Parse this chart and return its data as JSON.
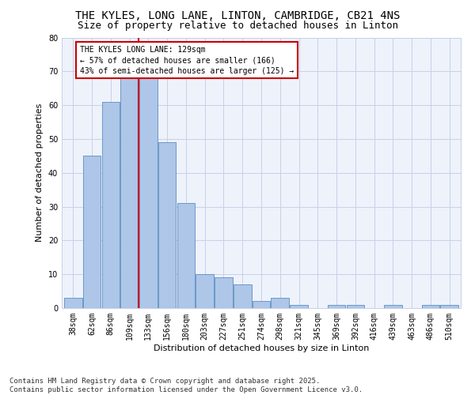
{
  "title": "THE KYLES, LONG LANE, LINTON, CAMBRIDGE, CB21 4NS",
  "subtitle": "Size of property relative to detached houses in Linton",
  "xlabel": "Distribution of detached houses by size in Linton",
  "ylabel": "Number of detached properties",
  "categories": [
    "38sqm",
    "62sqm",
    "86sqm",
    "109sqm",
    "133sqm",
    "156sqm",
    "180sqm",
    "203sqm",
    "227sqm",
    "251sqm",
    "274sqm",
    "298sqm",
    "321sqm",
    "345sqm",
    "369sqm",
    "392sqm",
    "416sqm",
    "439sqm",
    "463sqm",
    "486sqm",
    "510sqm"
  ],
  "values": [
    3,
    45,
    61,
    68,
    68,
    49,
    31,
    10,
    9,
    7,
    2,
    3,
    1,
    0,
    1,
    1,
    0,
    1,
    0,
    1,
    1
  ],
  "bar_color": "#aec6e8",
  "bar_edge_color": "#5a8fc2",
  "highlight_line_color": "#cc0000",
  "annotation_text": "THE KYLES LONG LANE: 129sqm\n← 57% of detached houses are smaller (166)\n43% of semi-detached houses are larger (125) →",
  "annotation_box_color": "#cc0000",
  "ylim": [
    0,
    80
  ],
  "yticks": [
    0,
    10,
    20,
    30,
    40,
    50,
    60,
    70,
    80
  ],
  "footer_text": "Contains HM Land Registry data © Crown copyright and database right 2025.\nContains public sector information licensed under the Open Government Licence v3.0.",
  "bg_color": "#eef2fb",
  "grid_color": "#c8d0e8",
  "title_fontsize": 10,
  "subtitle_fontsize": 9,
  "axis_label_fontsize": 8,
  "tick_fontsize": 7,
  "footer_fontsize": 6.5
}
